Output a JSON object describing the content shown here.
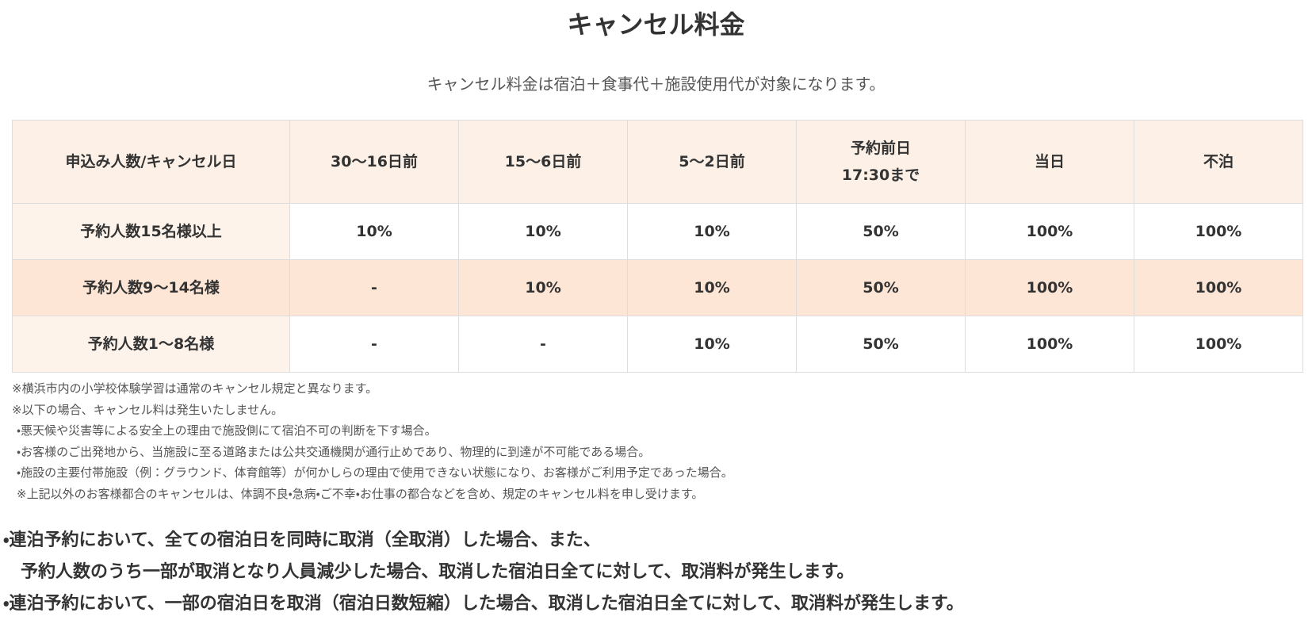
{
  "header": {
    "title": "キャンセル料金",
    "subtitle": "キャンセル料金は宿泊＋食事代＋施設使用代が対象になります。"
  },
  "table": {
    "header": [
      "申込み人数/キャンセル日",
      "30〜16日前",
      "15〜6日前",
      "5〜2日前",
      "予約前日\n17:30まで",
      "当日",
      "不泊"
    ],
    "rows": [
      [
        "予約人数15名様以上",
        "10%",
        "10%",
        "10%",
        "50%",
        "100%",
        "100%"
      ],
      [
        "予約人数9〜14名様",
        "-",
        "10%",
        "10%",
        "50%",
        "100%",
        "100%"
      ],
      [
        "予約人数1〜8名様",
        "-",
        "-",
        "10%",
        "50%",
        "100%",
        "100%"
      ]
    ]
  },
  "notes": [
    "※横浜市内の小学校体験学習は通常のキャンセル規定と異なります。",
    "※以下の場合、キャンセル料は発生いたしません。",
    "・悪天候や災害等による安全上の理由で施設側にて宿泊不可の判断を下す場合。",
    "・お客様のご出発地から、当施設に至る道路または公共交通機関が通行止めであり、物理的に到達が不可能である場合。",
    "・施設の主要付帯施設（例：グラウンド、体育館等）が何かしらの理由で使用できない状態になり、お客様がご利用予定であった場合。",
    "※上記以外のお客様都合のキャンセルは、体調不良・急病・ご不幸・お仕事の都合などを含め、規定のキャンセル料を申し受けます。"
  ],
  "bullets": [
    [
      "連泊予約において、全ての宿泊日を同時に取消（全取消）した場合、また、",
      "予約人数のうち一部が取消となり人員減少した場合、取消した宿泊日全てに対して、取消料が発生します。"
    ],
    [
      "連泊予約において、一部の宿泊日を取消（宿泊日数短縮）した場合、取消した宿泊日全てに対して、取消料が発生します。"
    ]
  ]
}
